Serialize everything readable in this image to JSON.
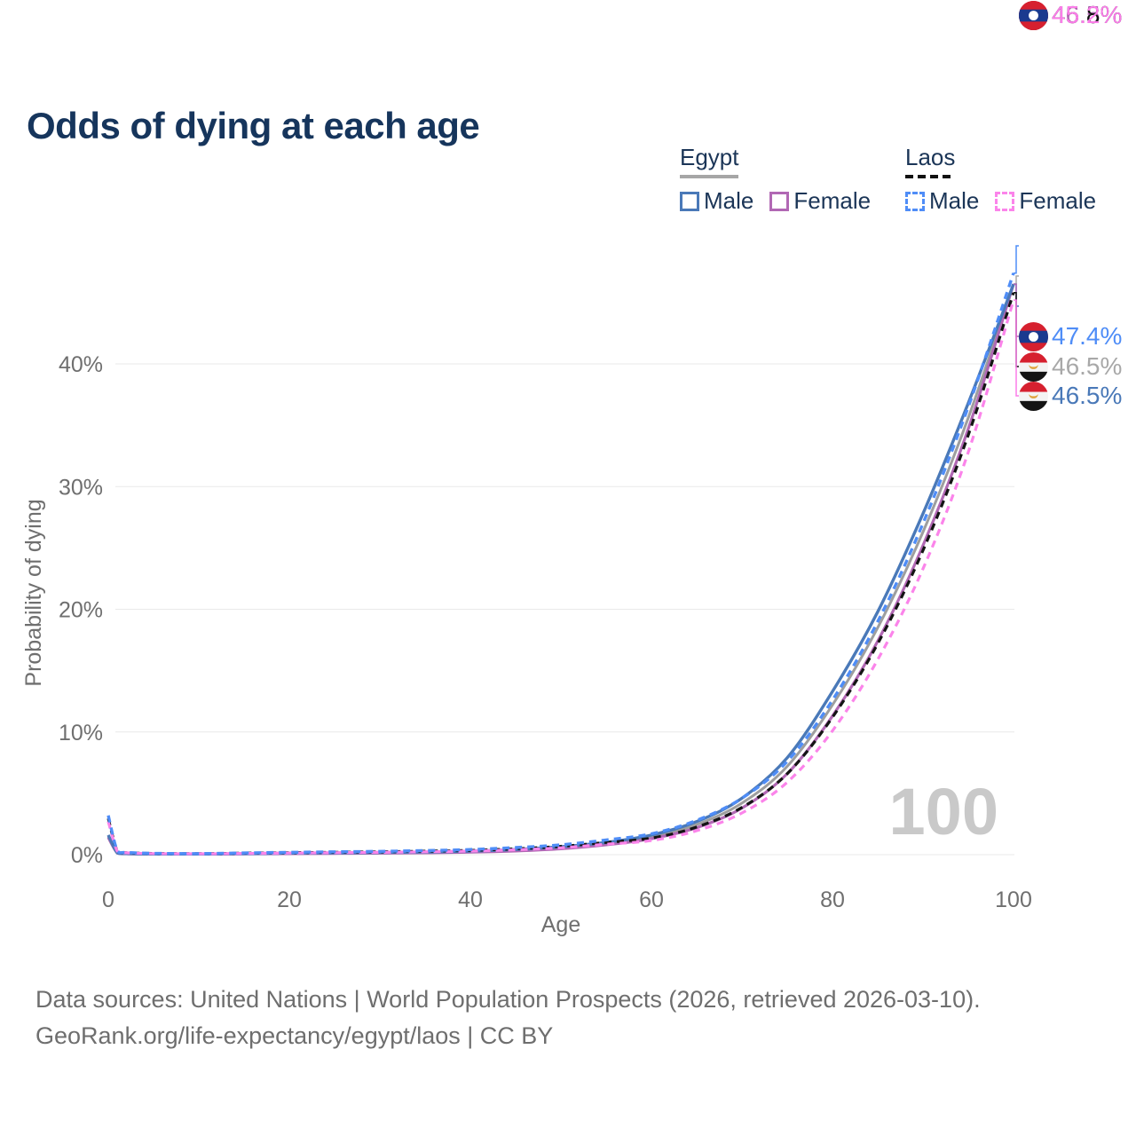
{
  "title": "Odds of dying at each age",
  "watermark": "100",
  "legend": {
    "egypt": {
      "label": "Egypt",
      "male": "Male",
      "female": "Female"
    },
    "laos": {
      "label": "Laos",
      "male": "Male",
      "female": "Female"
    }
  },
  "colors": {
    "egypt_male": "#4a79b8",
    "egypt_female": "#b168b4",
    "egypt_both": "#9e9e9e",
    "laos_male": "#4f8df7",
    "laos_female": "#fb84ea",
    "laos_both": "#141414",
    "title_text": "#16355c",
    "axis_text": "#6f6f6f",
    "gridline": "#e9e9e9",
    "watermark": "#c9c9c9"
  },
  "end_labels": [
    {
      "value": "47.4%",
      "country": "Laos",
      "series": "laos_male",
      "flag": "laos",
      "color": "#4f8df7"
    },
    {
      "value": "46.5%",
      "country": "Egypt",
      "series": "egypt_both",
      "flag": "egypt",
      "color": "#a8a8a8"
    },
    {
      "value": "46.5%",
      "country": "Egypt",
      "series": "egypt_male",
      "flag": "egypt",
      "color": "#4a79b8"
    },
    {
      "value": "46.5%",
      "country": "Egypt",
      "series": "egypt_female",
      "flag": "egypt",
      "color": "#b168b4"
    },
    {
      "value": "45.8%",
      "country": "Laos",
      "series": "laos_both",
      "flag": "laos",
      "color": "#111111"
    },
    {
      "value": "45.2%",
      "country": "Laos",
      "series": "laos_female",
      "flag": "laos",
      "color": "#fb7de9"
    }
  ],
  "footer": {
    "line1": "Data sources: United Nations | World Population Prospects (2026, retrieved 2026-03-10).",
    "line2": "GeoRank.org/life-expectancy/egypt/laos | CC BY"
  },
  "chart_data": {
    "type": "line",
    "title": "Odds of dying at each age",
    "xlabel": "Age",
    "ylabel": "Probability of dying",
    "xlim": [
      0,
      100
    ],
    "ylim": [
      0,
      48
    ],
    "x_ticks": [
      0,
      20,
      40,
      60,
      80,
      100
    ],
    "y_ticks": [
      0,
      10,
      20,
      30,
      40
    ],
    "y_tick_suffix": "%",
    "grid": "horizontal",
    "legend_position": "top-right",
    "x": [
      0,
      1,
      2,
      5,
      10,
      15,
      20,
      25,
      30,
      35,
      40,
      45,
      50,
      55,
      60,
      65,
      70,
      75,
      80,
      85,
      90,
      95,
      100
    ],
    "series": [
      {
        "id": "egypt_both",
        "name": "Egypt (both sexes)",
        "country": "Egypt",
        "sex": "both",
        "color": "#9e9e9e",
        "dash": null,
        "width": 3,
        "values": [
          1.5,
          0.14,
          0.08,
          0.055,
          0.045,
          0.07,
          0.1,
          0.12,
          0.14,
          0.18,
          0.24,
          0.36,
          0.56,
          0.9,
          1.45,
          2.45,
          4.2,
          7.2,
          12.2,
          18.5,
          26.3,
          35.6,
          46.5
        ]
      },
      {
        "id": "egypt_female",
        "name": "Egypt Female",
        "country": "Egypt",
        "sex": "female",
        "color": "#b168b4",
        "dash": null,
        "width": 3.2,
        "values": [
          1.4,
          0.13,
          0.07,
          0.05,
          0.04,
          0.06,
          0.08,
          0.1,
          0.12,
          0.15,
          0.2,
          0.3,
          0.48,
          0.8,
          1.3,
          2.2,
          3.8,
          6.6,
          11.3,
          17.4,
          25.2,
          34.7,
          46.5
        ]
      },
      {
        "id": "egypt_male",
        "name": "Egypt Male",
        "country": "Egypt",
        "sex": "male",
        "color": "#4a79b8",
        "dash": null,
        "width": 3.4,
        "values": [
          1.6,
          0.15,
          0.09,
          0.06,
          0.05,
          0.08,
          0.12,
          0.14,
          0.17,
          0.21,
          0.28,
          0.42,
          0.65,
          1.0,
          1.6,
          2.7,
          4.6,
          7.9,
          13.3,
          19.8,
          27.8,
          36.8,
          46.5
        ]
      },
      {
        "id": "laos_both",
        "name": "Laos (both sexes)",
        "country": "Laos",
        "sex": "both",
        "color": "#141414",
        "dash": "8 6",
        "width": 3.2,
        "values": [
          2.95,
          0.3,
          0.16,
          0.1,
          0.08,
          0.12,
          0.16,
          0.19,
          0.23,
          0.28,
          0.35,
          0.48,
          0.68,
          1.0,
          1.35,
          2.25,
          3.85,
          6.6,
          11.2,
          17.2,
          24.8,
          34.2,
          45.8
        ]
      },
      {
        "id": "laos_female",
        "name": "Laos Female",
        "country": "Laos",
        "sex": "female",
        "color": "#fb84ea",
        "dash": "8 6",
        "width": 3.2,
        "values": [
          2.7,
          0.28,
          0.15,
          0.09,
          0.07,
          0.1,
          0.13,
          0.16,
          0.19,
          0.23,
          0.29,
          0.4,
          0.56,
          0.85,
          1.15,
          1.95,
          3.4,
          5.9,
          10.1,
          15.9,
          23.3,
          32.8,
          45.2
        ]
      },
      {
        "id": "laos_male",
        "name": "Laos Male",
        "country": "Laos",
        "sex": "male",
        "color": "#4f8df7",
        "dash": "8 6",
        "width": 3.4,
        "values": [
          3.2,
          0.32,
          0.18,
          0.11,
          0.09,
          0.14,
          0.19,
          0.23,
          0.27,
          0.33,
          0.42,
          0.58,
          0.8,
          1.2,
          1.7,
          2.8,
          4.6,
          7.6,
          12.6,
          19.0,
          27.0,
          36.5,
          47.4
        ]
      }
    ]
  }
}
